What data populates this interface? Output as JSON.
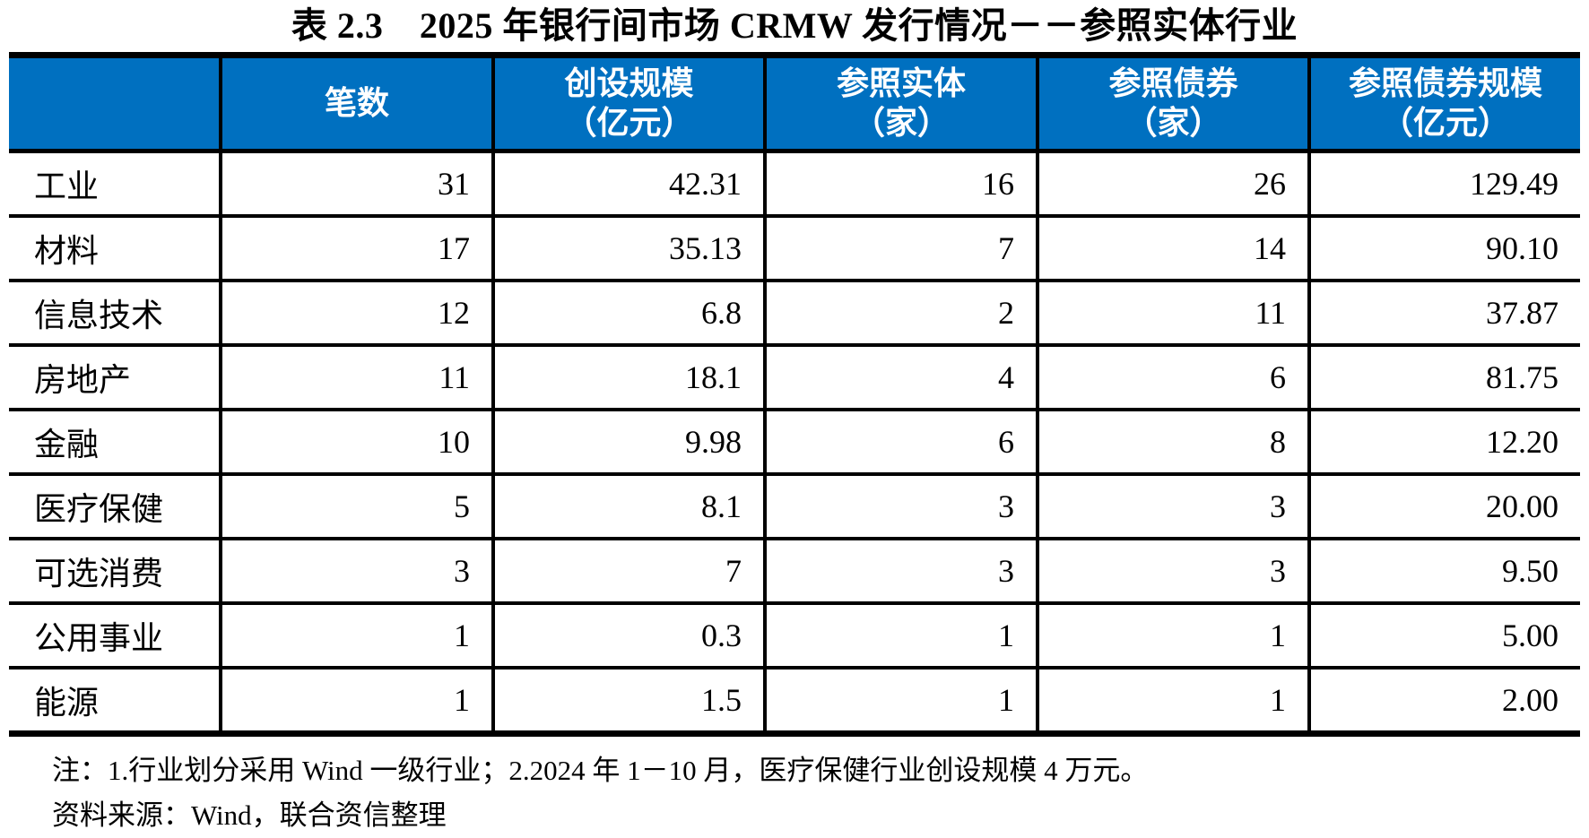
{
  "title": "表 2.3　2025 年银行间市场 CRMW 发行情况－－参照实体行业",
  "table": {
    "header_bg": "#0070C0",
    "header_text_color": "#ffffff",
    "columns": [
      {
        "label": "",
        "unit": ""
      },
      {
        "label": "笔数",
        "unit": ""
      },
      {
        "label": "创设规模",
        "unit": "（亿元）"
      },
      {
        "label": "参照实体",
        "unit": "（家）"
      },
      {
        "label": "参照债券",
        "unit": "（家）"
      },
      {
        "label": "参照债券规模",
        "unit": "（亿元）"
      }
    ],
    "rows": [
      {
        "label": "工业",
        "values": [
          "31",
          "42.31",
          "16",
          "26",
          "129.49"
        ]
      },
      {
        "label": "材料",
        "values": [
          "17",
          "35.13",
          "7",
          "14",
          "90.10"
        ]
      },
      {
        "label": "信息技术",
        "values": [
          "12",
          "6.8",
          "2",
          "11",
          "37.87"
        ]
      },
      {
        "label": "房地产",
        "values": [
          "11",
          "18.1",
          "4",
          "6",
          "81.75"
        ]
      },
      {
        "label": "金融",
        "values": [
          "10",
          "9.98",
          "6",
          "8",
          "12.20"
        ]
      },
      {
        "label": "医疗保健",
        "values": [
          "5",
          "8.1",
          "3",
          "3",
          "20.00"
        ]
      },
      {
        "label": "可选消费",
        "values": [
          "3",
          "7",
          "3",
          "3",
          "9.50"
        ]
      },
      {
        "label": "公用事业",
        "values": [
          "1",
          "0.3",
          "1",
          "1",
          "5.00"
        ]
      },
      {
        "label": "能源",
        "values": [
          "1",
          "1.5",
          "1",
          "1",
          "2.00"
        ]
      }
    ]
  },
  "notes": {
    "note": "注：1.行业划分采用 Wind 一级行业；2.2024 年 1－10 月，医疗保健行业创设规模 4 万元。",
    "source": "资料来源：Wind，联合资信整理"
  }
}
